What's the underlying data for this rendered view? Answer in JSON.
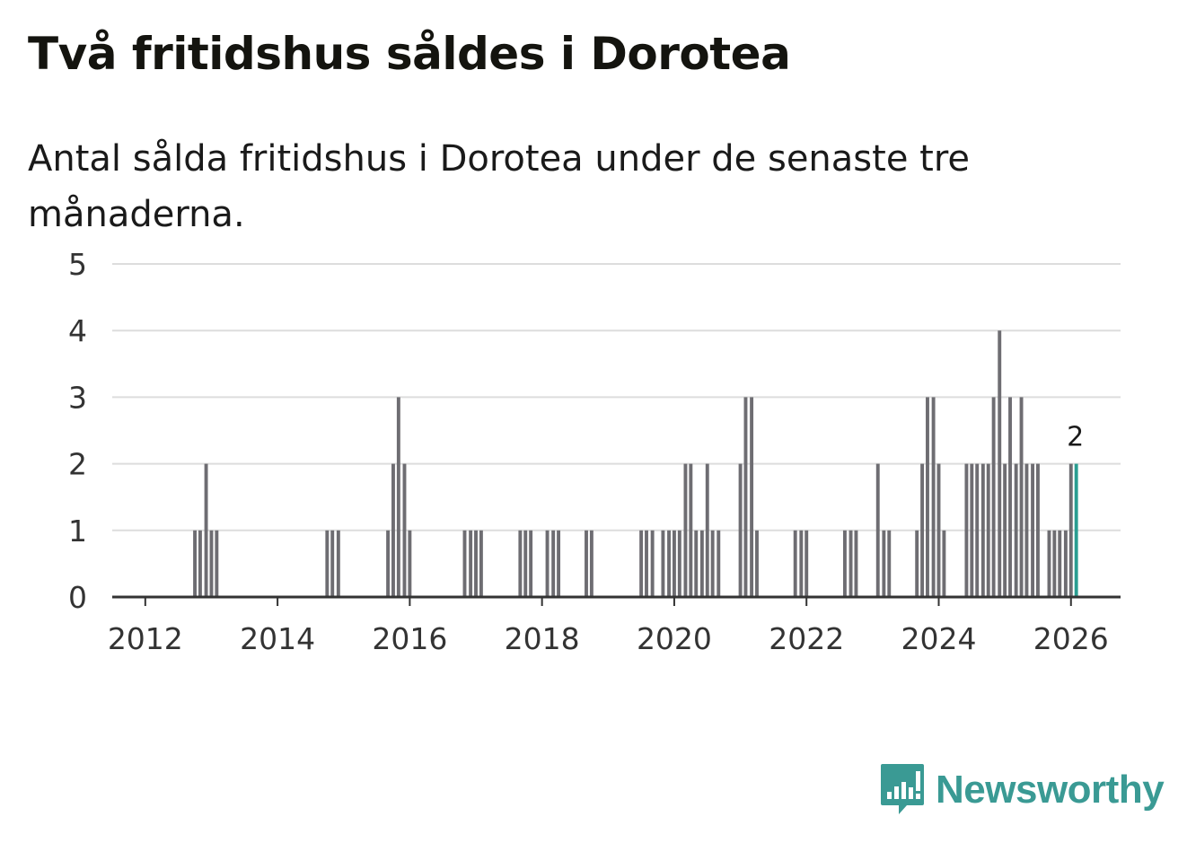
{
  "title": "Två fritidshus såldes i Dorotea",
  "subtitle": "Antal sålda fritidshus i Dorotea under de senaste tre månaderna.",
  "brand": {
    "name": "Newsworthy",
    "logo_icon": "newsworthy-chart-icon",
    "color": "#3a9a94"
  },
  "colors": {
    "bar": "#6e6d72",
    "highlight": "#2a9d91",
    "grid": "#dddddd",
    "axis": "#333333"
  },
  "chart_data": {
    "type": "bar",
    "title": "Två fritidshus såldes i Dorotea",
    "subtitle": "Antal sålda fritidshus i Dorotea under de senaste tre månaderna.",
    "xlabel": "",
    "ylabel": "",
    "ylim": [
      0,
      5
    ],
    "xlim": [
      2011.5,
      2026.75
    ],
    "y_ticks": [
      "0",
      "1",
      "2",
      "3",
      "4",
      "5"
    ],
    "x_ticks": [
      "2012",
      "2014",
      "2016",
      "2018",
      "2020",
      "2022",
      "2024",
      "2026"
    ],
    "grid": true,
    "x_unit": "year (monthly bars)",
    "series": [
      {
        "name": "Antal sålda fritidshus",
        "points": [
          {
            "x": 2012.75,
            "y": 1
          },
          {
            "x": 2012.83,
            "y": 1
          },
          {
            "x": 2012.92,
            "y": 2
          },
          {
            "x": 2013.0,
            "y": 1
          },
          {
            "x": 2013.08,
            "y": 1
          },
          {
            "x": 2014.75,
            "y": 1
          },
          {
            "x": 2014.83,
            "y": 1
          },
          {
            "x": 2014.92,
            "y": 1
          },
          {
            "x": 2015.67,
            "y": 1
          },
          {
            "x": 2015.75,
            "y": 2
          },
          {
            "x": 2015.83,
            "y": 3
          },
          {
            "x": 2015.92,
            "y": 2
          },
          {
            "x": 2016.0,
            "y": 1
          },
          {
            "x": 2016.83,
            "y": 1
          },
          {
            "x": 2016.92,
            "y": 1
          },
          {
            "x": 2017.0,
            "y": 1
          },
          {
            "x": 2017.08,
            "y": 1
          },
          {
            "x": 2017.67,
            "y": 1
          },
          {
            "x": 2017.75,
            "y": 1
          },
          {
            "x": 2017.83,
            "y": 1
          },
          {
            "x": 2018.08,
            "y": 1
          },
          {
            "x": 2018.17,
            "y": 1
          },
          {
            "x": 2018.25,
            "y": 1
          },
          {
            "x": 2018.67,
            "y": 1
          },
          {
            "x": 2018.75,
            "y": 1
          },
          {
            "x": 2019.5,
            "y": 1
          },
          {
            "x": 2019.58,
            "y": 1
          },
          {
            "x": 2019.67,
            "y": 1
          },
          {
            "x": 2019.83,
            "y": 1
          },
          {
            "x": 2019.92,
            "y": 1
          },
          {
            "x": 2020.0,
            "y": 1
          },
          {
            "x": 2020.08,
            "y": 1
          },
          {
            "x": 2020.17,
            "y": 2
          },
          {
            "x": 2020.25,
            "y": 2
          },
          {
            "x": 2020.33,
            "y": 1
          },
          {
            "x": 2020.42,
            "y": 1
          },
          {
            "x": 2020.5,
            "y": 2
          },
          {
            "x": 2020.58,
            "y": 1
          },
          {
            "x": 2020.67,
            "y": 1
          },
          {
            "x": 2021.0,
            "y": 2
          },
          {
            "x": 2021.08,
            "y": 3
          },
          {
            "x": 2021.17,
            "y": 3
          },
          {
            "x": 2021.25,
            "y": 1
          },
          {
            "x": 2021.83,
            "y": 1
          },
          {
            "x": 2021.92,
            "y": 1
          },
          {
            "x": 2022.0,
            "y": 1
          },
          {
            "x": 2022.58,
            "y": 1
          },
          {
            "x": 2022.67,
            "y": 1
          },
          {
            "x": 2022.75,
            "y": 1
          },
          {
            "x": 2023.08,
            "y": 2
          },
          {
            "x": 2023.17,
            "y": 1
          },
          {
            "x": 2023.25,
            "y": 1
          },
          {
            "x": 2023.67,
            "y": 1
          },
          {
            "x": 2023.75,
            "y": 2
          },
          {
            "x": 2023.83,
            "y": 3
          },
          {
            "x": 2023.92,
            "y": 3
          },
          {
            "x": 2024.0,
            "y": 2
          },
          {
            "x": 2024.08,
            "y": 1
          },
          {
            "x": 2024.42,
            "y": 2
          },
          {
            "x": 2024.5,
            "y": 2
          },
          {
            "x": 2024.58,
            "y": 2
          },
          {
            "x": 2024.67,
            "y": 2
          },
          {
            "x": 2024.75,
            "y": 2
          },
          {
            "x": 2024.83,
            "y": 3
          },
          {
            "x": 2024.92,
            "y": 4
          },
          {
            "x": 2025.0,
            "y": 2
          },
          {
            "x": 2025.08,
            "y": 3
          },
          {
            "x": 2025.17,
            "y": 2
          },
          {
            "x": 2025.25,
            "y": 3
          },
          {
            "x": 2025.33,
            "y": 2
          },
          {
            "x": 2025.42,
            "y": 2
          },
          {
            "x": 2025.5,
            "y": 2
          },
          {
            "x": 2025.67,
            "y": 1
          },
          {
            "x": 2025.75,
            "y": 1
          },
          {
            "x": 2025.83,
            "y": 1
          },
          {
            "x": 2025.92,
            "y": 1
          },
          {
            "x": 2026.0,
            "y": 2
          },
          {
            "x": 2026.08,
            "y": 2
          }
        ]
      }
    ],
    "highlight": {
      "x": 2026.08,
      "y": 2,
      "label": "2"
    }
  }
}
